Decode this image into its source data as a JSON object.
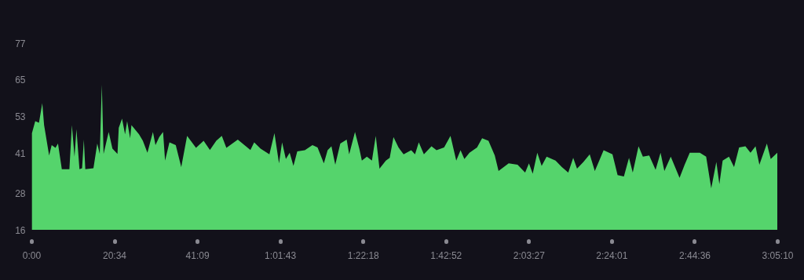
{
  "chart_data": {
    "type": "area",
    "xlim": [
      0,
      11110
    ],
    "ylim": [
      16,
      77
    ],
    "xticks": [
      {
        "value": 0,
        "label": "0:00"
      },
      {
        "value": 1234,
        "label": "20:34"
      },
      {
        "value": 2469,
        "label": "41:09"
      },
      {
        "value": 3703,
        "label": "1:01:43"
      },
      {
        "value": 4938,
        "label": "1:22:18"
      },
      {
        "value": 6172,
        "label": "1:42:52"
      },
      {
        "value": 7407,
        "label": "2:03:27"
      },
      {
        "value": 8641,
        "label": "2:24:01"
      },
      {
        "value": 9876,
        "label": "2:44:36"
      },
      {
        "value": 11110,
        "label": "3:05:10"
      }
    ],
    "yticks": [
      16,
      28,
      41,
      53,
      65,
      77
    ],
    "grid": false,
    "x": [
      8,
      57,
      113,
      162,
      189,
      264,
      302,
      359,
      396,
      453,
      566,
      603,
      642,
      671,
      716,
      755,
      781,
      803,
      924,
      981,
      1018,
      1049,
      1075,
      1151,
      1207,
      1282,
      1301,
      1350,
      1395,
      1426,
      1471,
      1490,
      1603,
      1660,
      1728,
      1810,
      1848,
      1904,
      1961,
      1991,
      2056,
      2150,
      2232,
      2319,
      2452,
      2565,
      2659,
      2753,
      2836,
      2904,
      3074,
      3262,
      3318,
      3413,
      3545,
      3620,
      3688,
      3734,
      3790,
      3847,
      3903,
      3960,
      4073,
      4186,
      4262,
      4356,
      4412,
      4469,
      4526,
      4601,
      4696,
      4733,
      4820,
      4884,
      4922,
      4997,
      5072,
      5129,
      5185,
      5280,
      5337,
      5393,
      5468,
      5544,
      5657,
      5714,
      5770,
      5846,
      5959,
      6034,
      6147,
      6242,
      6328,
      6392,
      6449,
      6525,
      6638,
      6713,
      6808,
      6902,
      6958,
      7109,
      7241,
      7354,
      7411,
      7467,
      7535,
      7600,
      7674,
      7807,
      7901,
      7996,
      8070,
      8127,
      8222,
      8316,
      8392,
      8523,
      8655,
      8731,
      8825,
      8901,
      8957,
      9043,
      9108,
      9202,
      9297,
      9371,
      9428,
      9523,
      9654,
      9730,
      9806,
      9956,
      10050,
      10126,
      10202,
      10247,
      10296,
      10390,
      10466,
      10541,
      10635,
      10711,
      10786,
      10843,
      10955,
      11012,
      11110
    ],
    "series": [
      {
        "color": "#55d46c",
        "values": [
          47.6,
          51.5,
          51,
          57.4,
          50.2,
          40.3,
          43.7,
          42.8,
          44.2,
          35.8,
          35.8,
          50.2,
          39.9,
          48.9,
          35.8,
          36.1,
          45.5,
          35.8,
          36.1,
          44.2,
          40.8,
          63.4,
          40.8,
          48,
          42.5,
          40.8,
          49.3,
          52.3,
          47.2,
          51.5,
          45.9,
          50.2,
          47.2,
          45.1,
          41.2,
          48,
          43.7,
          46.3,
          48,
          38.6,
          44.6,
          43.7,
          36.5,
          46.7,
          42.8,
          45.1,
          42.1,
          45.1,
          46.7,
          42.8,
          45.5,
          42.1,
          44.6,
          42.5,
          40.7,
          47.6,
          37.7,
          44.6,
          39.1,
          41.2,
          36.9,
          41.6,
          42,
          43.7,
          42.9,
          37.7,
          42,
          43.3,
          37.3,
          44.2,
          45.5,
          40.7,
          48,
          42.5,
          38.6,
          39.9,
          38.6,
          46.7,
          36,
          38.6,
          39.5,
          46.3,
          42.9,
          40.7,
          42,
          40.7,
          44.6,
          40.7,
          43.3,
          42,
          42.9,
          46.7,
          38.6,
          42,
          39.1,
          41.2,
          42.9,
          45.9,
          45.1,
          40.3,
          35.2,
          37.7,
          37.3,
          34.7,
          37.7,
          34.3,
          41.2,
          36.9,
          39.9,
          38.6,
          36.5,
          34.7,
          39.5,
          36,
          38.2,
          40.7,
          35.2,
          42,
          40.7,
          33.9,
          33.4,
          39.5,
          34.7,
          43.3,
          39.9,
          40.3,
          35.6,
          41.2,
          35.2,
          39.9,
          33,
          37.3,
          41.2,
          41.2,
          39.9,
          29.6,
          38.2,
          30.9,
          38.6,
          39.9,
          36.5,
          42.9,
          43.3,
          41.2,
          43.3,
          37.3,
          44.2,
          39.1,
          41.2
        ]
      }
    ]
  }
}
